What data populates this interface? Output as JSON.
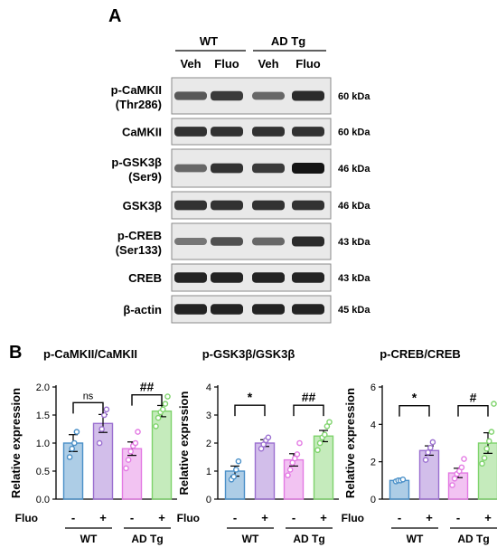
{
  "panel_a": {
    "label": "A",
    "groups": [
      "WT",
      "AD Tg"
    ],
    "lanes": [
      "Veh",
      "Fluo",
      "Veh",
      "Fluo"
    ],
    "blots": [
      {
        "name": "p-CaMKII",
        "name2": "(Thr286)",
        "size": "60 kDa",
        "intensity": [
          0.55,
          0.75,
          0.45,
          0.85
        ]
      },
      {
        "name": "CaMKII",
        "name2": "",
        "size": "60 kDa",
        "intensity": [
          0.8,
          0.8,
          0.8,
          0.8
        ]
      },
      {
        "name": "p-GSK3β",
        "name2": "(Ser9)",
        "size": "46 kDa",
        "intensity": [
          0.45,
          0.8,
          0.75,
          1.0
        ]
      },
      {
        "name": "GSK3β",
        "name2": "",
        "size": "46 kDa",
        "intensity": [
          0.8,
          0.8,
          0.8,
          0.8
        ]
      },
      {
        "name": "p-CREB",
        "name2": "(Ser133)",
        "size": "43 kDa",
        "intensity": [
          0.35,
          0.6,
          0.45,
          0.85
        ]
      },
      {
        "name": "CREB",
        "name2": "",
        "size": "43 kDa",
        "intensity": [
          0.9,
          0.9,
          0.9,
          0.9
        ]
      },
      {
        "name": "β-actin",
        "name2": "",
        "size": "45 kDa",
        "intensity": [
          0.9,
          0.9,
          0.9,
          0.9
        ]
      }
    ]
  },
  "panel_b_label": "B",
  "chart_data": [
    {
      "type": "bar",
      "title": "p-CaMKII/CaMKII",
      "ylabel": "Relative expression",
      "ylim": [
        0,
        2.0
      ],
      "yticks": [
        "0.0",
        "0.5",
        "1.0",
        "1.5",
        "2.0"
      ],
      "ytick_values": [
        0,
        0.5,
        1.0,
        1.5,
        2.0
      ],
      "treatment_label": "Fluo",
      "treatment_marks": [
        "-",
        "+",
        "-",
        "+"
      ],
      "groups": [
        "WT",
        "AD Tg"
      ],
      "values": [
        1.0,
        1.35,
        0.9,
        1.57
      ],
      "errors": [
        0.15,
        0.16,
        0.12,
        0.1
      ],
      "points": [
        [
          0.75,
          0.9,
          1.0,
          1.2
        ],
        [
          1.0,
          1.25,
          1.5,
          1.6
        ],
        [
          0.55,
          0.7,
          0.85,
          0.95,
          1.0,
          1.2
        ],
        [
          1.3,
          1.45,
          1.55,
          1.6,
          1.7,
          1.83
        ]
      ],
      "colors": [
        "#4a90c8",
        "#9b6fd0",
        "#e37ae3",
        "#7ed36b"
      ],
      "comparisons": [
        {
          "between": [
            0,
            1
          ],
          "label": "ns",
          "y": 1.72
        },
        {
          "between": [
            2,
            3
          ],
          "label": "##",
          "y": 1.86
        }
      ]
    },
    {
      "type": "bar",
      "title": "p-GSK3β/GSK3β",
      "ylabel": "Relative exprssion",
      "ylim": [
        0,
        4
      ],
      "yticks": [
        "0",
        "1",
        "2",
        "3",
        "4"
      ],
      "ytick_values": [
        0,
        1,
        2,
        3,
        4
      ],
      "treatment_label": "Fluo",
      "treatment_marks": [
        "-",
        "+",
        "-",
        "+"
      ],
      "groups": [
        "WT",
        "AD Tg"
      ],
      "values": [
        1.0,
        2.0,
        1.4,
        2.25
      ],
      "errors": [
        0.18,
        0.12,
        0.22,
        0.2
      ],
      "points": [
        [
          0.7,
          0.8,
          1.05,
          1.35
        ],
        [
          1.8,
          1.95,
          2.1,
          2.2
        ],
        [
          0.85,
          1.05,
          1.3,
          1.45,
          1.6,
          2.0
        ],
        [
          1.75,
          2.0,
          2.2,
          2.3,
          2.6,
          2.75
        ]
      ],
      "colors": [
        "#4a90c8",
        "#9b6fd0",
        "#e37ae3",
        "#7ed36b"
      ],
      "comparisons": [
        {
          "between": [
            0,
            1
          ],
          "label": "*",
          "y": 3.35
        },
        {
          "between": [
            2,
            3
          ],
          "label": "##",
          "y": 3.35
        }
      ]
    },
    {
      "type": "bar",
      "title": "p-CREB/CREB",
      "ylabel": "Relative expression",
      "ylim": [
        0,
        6
      ],
      "yticks": [
        "0",
        "2",
        "4",
        "6"
      ],
      "ytick_values": [
        0,
        2,
        4,
        6
      ],
      "treatment_label": "Fluo",
      "treatment_marks": [
        "-",
        "+",
        "-",
        "+"
      ],
      "groups": [
        "WT",
        "AD Tg"
      ],
      "values": [
        1.0,
        2.6,
        1.4,
        3.0
      ],
      "errors": [
        0.05,
        0.25,
        0.25,
        0.55
      ],
      "points": [
        [
          0.95,
          1.0,
          1.0,
          1.05
        ],
        [
          2.1,
          2.5,
          2.75,
          3.05
        ],
        [
          0.75,
          1.1,
          1.35,
          1.5,
          1.7,
          2.15
        ],
        [
          1.9,
          2.2,
          2.7,
          3.1,
          3.6,
          5.1
        ]
      ],
      "colors": [
        "#4a90c8",
        "#9b6fd0",
        "#e37ae3",
        "#7ed36b"
      ],
      "comparisons": [
        {
          "between": [
            0,
            1
          ],
          "label": "*",
          "y": 5.0
        },
        {
          "between": [
            2,
            3
          ],
          "label": "#",
          "y": 5.0
        }
      ]
    }
  ]
}
